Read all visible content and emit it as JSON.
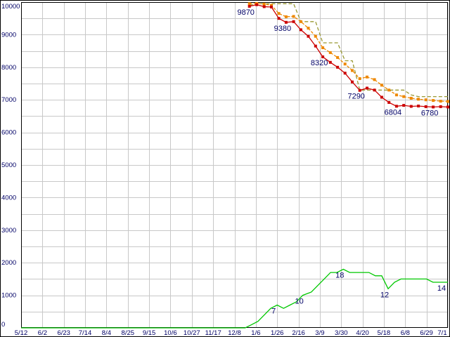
{
  "chart_style": {
    "background": "#ffffff",
    "border_color": "#000000",
    "grid_color": "#c8c8c8",
    "axis_text_color": "#000066",
    "label_text_color": "#000066"
  },
  "chart_data": {
    "type": "line",
    "title": "",
    "xlabel": "",
    "ylabel": "",
    "legend": "none",
    "grid": "on",
    "y_range": [
      0,
      10000
    ],
    "y_grid_step": 500,
    "y_tick_labels": [
      "0",
      "1000",
      "2000",
      "3000",
      "4000",
      "5000",
      "6000",
      "7000",
      "8000",
      "9000",
      "10000"
    ],
    "x_tick_labels": [
      "5/12",
      "6/2",
      "6/23",
      "7/14",
      "8/4",
      "8/25",
      "9/15",
      "10/6",
      "10/27",
      "11/17",
      "12/8",
      "1/6",
      "1/26",
      "2/16",
      "3/9",
      "3/30",
      "4/20",
      "5/18",
      "6/8",
      "6/29",
      "7/1"
    ],
    "series": [
      {
        "name": "upper-step-olive",
        "color": "#999933",
        "dash": "5,3",
        "marker": "none",
        "value_scale": 1,
        "x": [
          10.7,
          11.04,
          11.39,
          11.73,
          12.08,
          12.42,
          12.77,
          13.11,
          13.46,
          13.8,
          14.14,
          14.49,
          14.83,
          15.18,
          15.52,
          15.87,
          16.21,
          16.56,
          16.9,
          17.24,
          17.59,
          17.93,
          18.28,
          18.62,
          18.97,
          19.31,
          19.66,
          20
        ],
        "values": [
          9900,
          9950,
          9950,
          9950,
          9950,
          9950,
          9950,
          9400,
          9400,
          9400,
          8750,
          8750,
          8750,
          8200,
          8200,
          7300,
          7300,
          7300,
          7300,
          7300,
          7300,
          7300,
          7150,
          7100,
          7100,
          7100,
          7100,
          7100
        ],
        "point_labels": [
          null,
          null,
          null,
          null,
          null,
          null,
          null,
          null,
          null,
          null,
          null,
          null,
          null,
          null,
          null,
          null,
          null,
          null,
          null,
          null,
          null,
          null,
          null,
          null,
          null,
          null,
          null,
          null
        ]
      },
      {
        "name": "mid-orange-dashed",
        "color": "#ee8800",
        "dash": "4,2",
        "marker": "square",
        "value_scale": 1,
        "x": [
          10.7,
          11.04,
          11.39,
          11.73,
          12.08,
          12.42,
          12.77,
          13.11,
          13.46,
          13.8,
          14.14,
          14.49,
          14.83,
          15.18,
          15.52,
          15.87,
          16.21,
          16.56,
          16.9,
          17.24,
          17.59,
          17.93,
          18.28,
          18.62,
          18.97,
          19.31,
          19.66,
          20
        ],
        "values": [
          9950,
          9960,
          9940,
          9900,
          9650,
          9550,
          9560,
          9400,
          9200,
          8950,
          8600,
          8450,
          8300,
          8100,
          7900,
          7650,
          7700,
          7620,
          7450,
          7300,
          7150,
          7100,
          7050,
          7020,
          7000,
          6980,
          6960,
          6950
        ],
        "point_labels": [
          null,
          null,
          null,
          null,
          null,
          null,
          null,
          null,
          null,
          null,
          null,
          null,
          null,
          null,
          null,
          null,
          null,
          null,
          null,
          null,
          null,
          null,
          null,
          null,
          null,
          null,
          null,
          null
        ]
      },
      {
        "name": "primary-red",
        "color": "#cc0000",
        "dash": "",
        "marker": "square",
        "value_scale": 1,
        "x": [
          10.7,
          11.04,
          11.39,
          11.73,
          12.08,
          12.42,
          12.77,
          13.11,
          13.46,
          13.8,
          14.14,
          14.49,
          14.83,
          15.18,
          15.52,
          15.87,
          16.21,
          16.56,
          16.9,
          17.24,
          17.59,
          17.93,
          18.28,
          18.62,
          18.97,
          19.31,
          19.66,
          20
        ],
        "values": [
          9870,
          9920,
          9860,
          9850,
          9500,
          9380,
          9400,
          9150,
          8950,
          8650,
          8320,
          8150,
          8000,
          7820,
          7550,
          7290,
          7360,
          7300,
          7080,
          6920,
          6804,
          6830,
          6800,
          6810,
          6790,
          6780,
          6790,
          6780
        ],
        "point_labels": [
          "9870",
          null,
          null,
          null,
          null,
          "9380",
          null,
          null,
          null,
          null,
          "8320",
          null,
          null,
          null,
          null,
          "7290",
          null,
          null,
          null,
          null,
          "6804",
          null,
          null,
          null,
          null,
          "6780",
          null,
          null
        ]
      },
      {
        "name": "lower-green",
        "color": "#00c800",
        "dash": "",
        "marker": "none",
        "value_scale": 100,
        "x": [
          0,
          10.5,
          10.8,
          11.1,
          11.4,
          11.7,
          12,
          12.3,
          12.6,
          12.9,
          13.2,
          13.6,
          13.9,
          14.2,
          14.5,
          14.8,
          15.1,
          15.4,
          15.7,
          16,
          16.3,
          16.6,
          16.9,
          17.2,
          17.5,
          17.8,
          18.1,
          18.4,
          18.7,
          19,
          19.3,
          19.6,
          20
        ],
        "values": [
          0,
          0,
          1,
          2,
          4,
          6,
          7,
          6,
          7,
          8,
          10,
          11,
          13,
          15,
          17,
          17,
          18,
          17,
          17,
          17,
          17,
          16,
          16,
          12,
          14,
          15,
          15,
          15,
          15,
          15,
          14,
          14,
          14
        ],
        "point_labels": [
          null,
          null,
          null,
          null,
          null,
          null,
          "7",
          null,
          null,
          null,
          "10",
          null,
          null,
          null,
          null,
          null,
          "18",
          null,
          null,
          null,
          null,
          null,
          null,
          "12",
          null,
          null,
          null,
          null,
          null,
          null,
          null,
          null,
          "14"
        ]
      }
    ]
  }
}
